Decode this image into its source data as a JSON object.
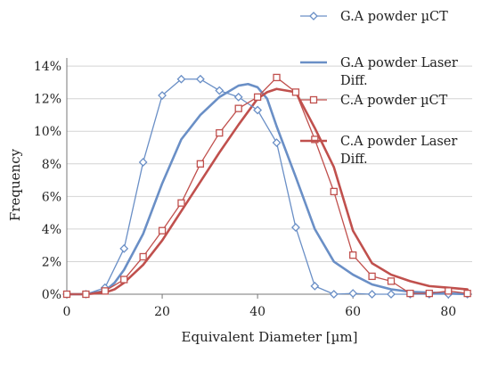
{
  "chart_data": {
    "type": "line",
    "title": "",
    "xlabel": "Equivalent Diameter [µm]",
    "ylabel": "Frequency",
    "xlim": [
      0,
      85
    ],
    "ylim": [
      0,
      0.145
    ],
    "xticks": [
      0,
      20,
      40,
      60,
      80
    ],
    "xtick_labels": [
      "0",
      "20",
      "40",
      "60",
      "80"
    ],
    "yticks": [
      0,
      0.02,
      0.04,
      0.06,
      0.08,
      0.1,
      0.12,
      0.14
    ],
    "ytick_labels": [
      "0%",
      "2%",
      "4%",
      "6%",
      "8%",
      "10%",
      "12%",
      "14%"
    ],
    "grid": "horizontal",
    "legend_position": "top-right",
    "series": [
      {
        "name": "G.A powder µCT",
        "color": "#6a8fc6",
        "marker": "diamond",
        "x": [
          0,
          4,
          8,
          12,
          16,
          20,
          24,
          28,
          32,
          36,
          40,
          44,
          48,
          52,
          56,
          60,
          64,
          68,
          72,
          76,
          80,
          84
        ],
        "y": [
          0.0,
          0.0,
          0.004,
          0.028,
          0.081,
          0.122,
          0.132,
          0.132,
          0.125,
          0.121,
          0.113,
          0.093,
          0.041,
          0.005,
          0.0,
          0.0005,
          0.0,
          0.0,
          0.0,
          0.0,
          0.0,
          0.0
        ]
      },
      {
        "name": "G.A powder Laser Diff.",
        "color": "#6a8fc6",
        "marker": "none",
        "x": [
          0,
          4,
          8,
          10,
          12,
          16,
          20,
          24,
          28,
          32,
          36,
          38,
          40,
          42,
          44,
          48,
          52,
          56,
          60,
          64,
          68,
          72,
          76,
          80,
          84
        ],
        "y": [
          0.0,
          0.0,
          0.002,
          0.007,
          0.015,
          0.037,
          0.068,
          0.095,
          0.11,
          0.121,
          0.128,
          0.129,
          0.127,
          0.12,
          0.103,
          0.072,
          0.04,
          0.02,
          0.012,
          0.006,
          0.003,
          0.0015,
          0.001,
          0.0005,
          0.0
        ]
      },
      {
        "name": "C.A powder µCT",
        "color": "#c0504d",
        "marker": "square",
        "x": [
          0,
          4,
          8,
          12,
          16,
          20,
          24,
          28,
          32,
          36,
          40,
          44,
          48,
          52,
          56,
          60,
          64,
          68,
          72,
          76,
          80,
          84
        ],
        "y": [
          0.0,
          0.0,
          0.002,
          0.009,
          0.023,
          0.039,
          0.056,
          0.08,
          0.099,
          0.114,
          0.121,
          0.133,
          0.124,
          0.095,
          0.063,
          0.024,
          0.011,
          0.008,
          0.0005,
          0.0005,
          0.002,
          0.0005
        ]
      },
      {
        "name": "C.A powder Laser Diff.",
        "color": "#c0504d",
        "marker": "none",
        "x": [
          0,
          4,
          8,
          10,
          12,
          16,
          20,
          24,
          28,
          32,
          36,
          40,
          42,
          44,
          48,
          52,
          56,
          60,
          64,
          68,
          72,
          76,
          80,
          84
        ],
        "y": [
          0.0,
          0.0,
          0.001,
          0.003,
          0.007,
          0.018,
          0.033,
          0.051,
          0.069,
          0.087,
          0.104,
          0.12,
          0.124,
          0.126,
          0.124,
          0.102,
          0.078,
          0.039,
          0.019,
          0.012,
          0.008,
          0.005,
          0.004,
          0.003
        ]
      }
    ]
  }
}
